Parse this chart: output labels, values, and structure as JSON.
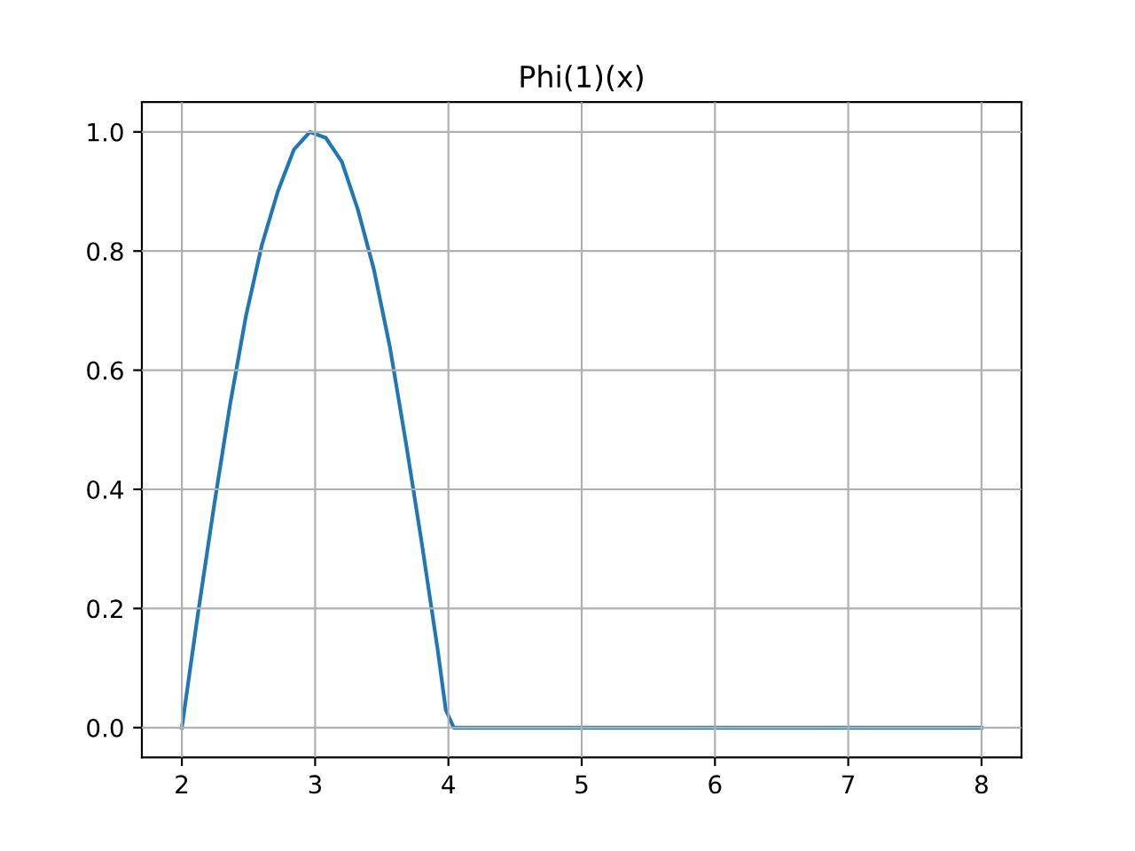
{
  "chart_data": {
    "type": "line",
    "title": "Phi(1)(x)",
    "series": [
      {
        "color": "#1f77b4",
        "x": [
          2.0,
          2.12,
          2.24,
          2.36,
          2.48,
          2.6,
          2.72,
          2.84,
          2.96,
          3.08,
          3.2,
          3.32,
          3.44,
          3.56,
          3.68,
          3.8,
          3.92,
          3.98,
          4.04,
          8.0
        ],
        "values": [
          0,
          0.19,
          0.37,
          0.54,
          0.69,
          0.81,
          0.9,
          0.97,
          1.0,
          0.99,
          0.95,
          0.87,
          0.77,
          0.64,
          0.48,
          0.31,
          0.13,
          0.03,
          0,
          0
        ]
      }
    ],
    "xlim": [
      1.7,
      8.3
    ],
    "xticks": [
      2,
      3,
      4,
      5,
      6,
      7,
      8
    ],
    "ylim": [
      -0.05,
      1.05
    ],
    "yticks": [
      {
        "value": 0,
        "label": "0.0"
      },
      {
        "value": 0.2,
        "label": "0.2"
      },
      {
        "value": 0.4,
        "label": "0.4"
      },
      {
        "value": 0.6,
        "label": "0.6"
      },
      {
        "value": 0.8,
        "label": "0.8"
      },
      {
        "value": 1.0,
        "label": "1.0"
      }
    ],
    "grid": true
  }
}
